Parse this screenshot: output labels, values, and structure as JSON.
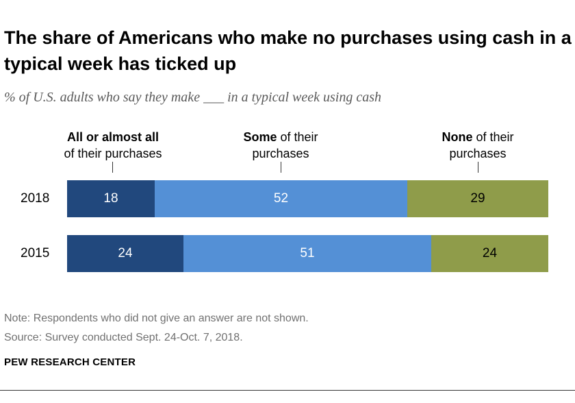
{
  "title": "The share of Americans who make no purchases using cash in a typical week has ticked up",
  "subtitle": "% of U.S. adults who say they make ___ in a typical week using cash",
  "legend": [
    {
      "bold": "All or almost all",
      "rest": "of their purchases"
    },
    {
      "bold": "Some",
      "rest_line1": " of their",
      "rest_line2": "purchases"
    },
    {
      "bold": "None",
      "rest_line1": " of their",
      "rest_line2": "purchases"
    }
  ],
  "note": "Note: Respondents who did not give an answer are not shown.",
  "source": "Source: Survey conducted Sept. 24-Oct. 7, 2018.",
  "brand": "PEW RESEARCH CENTER",
  "colors": {
    "all": "#21487d",
    "some": "#5490d6",
    "none": "#8f9c4a"
  },
  "chart_data": {
    "type": "bar",
    "stacked": true,
    "orientation": "horizontal",
    "categories": [
      "2018",
      "2015"
    ],
    "series": [
      {
        "name": "All or almost all of their purchases",
        "values": [
          18,
          24
        ]
      },
      {
        "name": "Some of their purchases",
        "values": [
          52,
          51
        ]
      },
      {
        "name": "None of their purchases",
        "values": [
          29,
          24
        ]
      }
    ]
  }
}
